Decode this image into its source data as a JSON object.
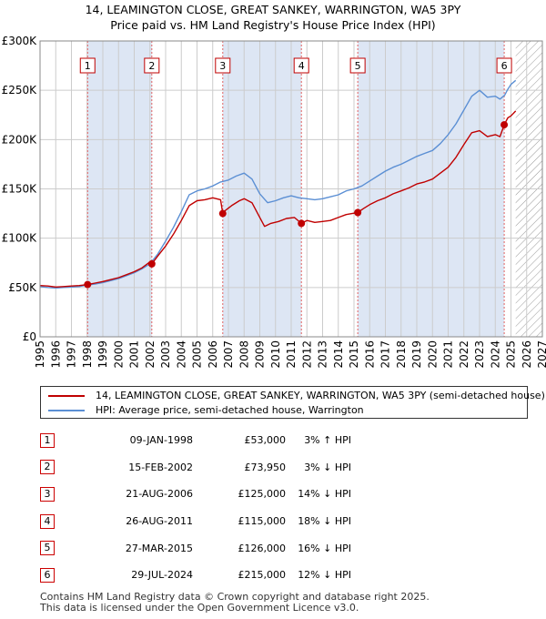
{
  "title": {
    "line1": "14, LEAMINGTON CLOSE, GREAT SANKEY, WARRINGTON, WA5 3PY",
    "line2": "Price paid vs. HM Land Registry's House Price Index (HPI)"
  },
  "colors": {
    "property": "#c00000",
    "hpi": "#5b8fd4",
    "shade": "#dde6f4",
    "grid": "#cccccc",
    "marker_line": "#e06060"
  },
  "chart_data": {
    "type": "line",
    "xlim": [
      1995,
      2027
    ],
    "ylim": [
      0,
      300000
    ],
    "x_ticks": [
      "1995",
      "1996",
      "1997",
      "1998",
      "1999",
      "2000",
      "2001",
      "2002",
      "2003",
      "2004",
      "2005",
      "2006",
      "2007",
      "2008",
      "2009",
      "2010",
      "2011",
      "2012",
      "2013",
      "2014",
      "2015",
      "2016",
      "2017",
      "2018",
      "2019",
      "2020",
      "2021",
      "2022",
      "2023",
      "2024",
      "2025",
      "2026",
      "2027"
    ],
    "y_ticks": [
      {
        "value": 0,
        "label": "£0"
      },
      {
        "value": 50000,
        "label": "£50K"
      },
      {
        "value": 100000,
        "label": "£100K"
      },
      {
        "value": 150000,
        "label": "£150K"
      },
      {
        "value": 200000,
        "label": "£200K"
      },
      {
        "value": 250000,
        "label": "£250K"
      },
      {
        "value": 300000,
        "label": "£300K"
      }
    ],
    "forecast_start": 2025.3,
    "series": [
      {
        "name": "14, LEAMINGTON CLOSE, GREAT SANKEY, WARRINGTON, WA5 3PY (semi-detached house)",
        "color": "#c00000",
        "points": [
          [
            1995.0,
            52000
          ],
          [
            1995.5,
            51500
          ],
          [
            1996.0,
            50500
          ],
          [
            1996.5,
            51000
          ],
          [
            1997.0,
            51500
          ],
          [
            1997.5,
            52000
          ],
          [
            1998.03,
            53000
          ],
          [
            1998.5,
            54500
          ],
          [
            1999.0,
            56000
          ],
          [
            1999.5,
            58000
          ],
          [
            2000.0,
            60000
          ],
          [
            2000.5,
            63000
          ],
          [
            2001.0,
            66000
          ],
          [
            2001.5,
            70000
          ],
          [
            2002.0,
            76000
          ],
          [
            2002.12,
            73950
          ],
          [
            2002.5,
            82000
          ],
          [
            2003.0,
            92000
          ],
          [
            2003.5,
            104000
          ],
          [
            2004.0,
            118000
          ],
          [
            2004.5,
            133000
          ],
          [
            2005.0,
            138000
          ],
          [
            2005.5,
            139000
          ],
          [
            2006.0,
            141000
          ],
          [
            2006.5,
            139000
          ],
          [
            2006.64,
            125000
          ],
          [
            2006.8,
            128000
          ],
          [
            2007.2,
            133000
          ],
          [
            2007.7,
            138000
          ],
          [
            2008.0,
            140000
          ],
          [
            2008.5,
            136000
          ],
          [
            2009.0,
            121000
          ],
          [
            2009.3,
            112000
          ],
          [
            2009.7,
            115000
          ],
          [
            2010.2,
            117000
          ],
          [
            2010.7,
            120000
          ],
          [
            2011.2,
            121000
          ],
          [
            2011.65,
            115000
          ],
          [
            2012.0,
            118000
          ],
          [
            2012.5,
            116000
          ],
          [
            2013.0,
            117000
          ],
          [
            2013.5,
            118000
          ],
          [
            2014.0,
            121000
          ],
          [
            2014.5,
            124000
          ],
          [
            2015.24,
            126000
          ],
          [
            2015.6,
            130000
          ],
          [
            2016.0,
            134000
          ],
          [
            2016.5,
            138000
          ],
          [
            2017.0,
            141000
          ],
          [
            2017.5,
            145000
          ],
          [
            2018.0,
            148000
          ],
          [
            2018.5,
            151000
          ],
          [
            2019.0,
            155000
          ],
          [
            2019.5,
            157000
          ],
          [
            2020.0,
            160000
          ],
          [
            2020.5,
            166000
          ],
          [
            2021.0,
            172000
          ],
          [
            2021.5,
            182000
          ],
          [
            2022.0,
            195000
          ],
          [
            2022.5,
            207000
          ],
          [
            2023.0,
            209000
          ],
          [
            2023.5,
            203000
          ],
          [
            2024.0,
            205000
          ],
          [
            2024.3,
            203000
          ],
          [
            2024.57,
            215000
          ],
          [
            2024.8,
            222000
          ],
          [
            2025.0,
            224000
          ],
          [
            2025.3,
            229000
          ]
        ]
      },
      {
        "name": "HPI: Average price, semi-detached house, Warrington",
        "color": "#5b8fd4",
        "points": [
          [
            1995.0,
            51000
          ],
          [
            1995.5,
            50000
          ],
          [
            1996.0,
            49500
          ],
          [
            1996.5,
            50000
          ],
          [
            1997.0,
            50500
          ],
          [
            1997.5,
            51000
          ],
          [
            1998.0,
            52500
          ],
          [
            1998.5,
            53500
          ],
          [
            1999.0,
            55000
          ],
          [
            1999.5,
            57000
          ],
          [
            2000.0,
            59000
          ],
          [
            2000.5,
            62000
          ],
          [
            2001.0,
            65000
          ],
          [
            2001.5,
            69000
          ],
          [
            2002.0,
            74000
          ],
          [
            2002.5,
            84000
          ],
          [
            2003.0,
            97000
          ],
          [
            2003.5,
            111000
          ],
          [
            2004.0,
            127000
          ],
          [
            2004.5,
            144000
          ],
          [
            2005.0,
            148000
          ],
          [
            2005.5,
            150000
          ],
          [
            2006.0,
            153000
          ],
          [
            2006.5,
            157000
          ],
          [
            2007.0,
            159000
          ],
          [
            2007.5,
            163000
          ],
          [
            2008.0,
            166000
          ],
          [
            2008.5,
            160000
          ],
          [
            2009.0,
            145000
          ],
          [
            2009.5,
            136000
          ],
          [
            2010.0,
            138000
          ],
          [
            2010.5,
            141000
          ],
          [
            2011.0,
            143000
          ],
          [
            2011.5,
            141000
          ],
          [
            2012.0,
            140000
          ],
          [
            2012.5,
            139000
          ],
          [
            2013.0,
            140000
          ],
          [
            2013.5,
            142000
          ],
          [
            2014.0,
            144000
          ],
          [
            2014.5,
            148000
          ],
          [
            2015.0,
            150000
          ],
          [
            2015.5,
            153000
          ],
          [
            2016.0,
            158000
          ],
          [
            2016.5,
            163000
          ],
          [
            2017.0,
            168000
          ],
          [
            2017.5,
            172000
          ],
          [
            2018.0,
            175000
          ],
          [
            2018.5,
            179000
          ],
          [
            2019.0,
            183000
          ],
          [
            2019.5,
            186000
          ],
          [
            2020.0,
            189000
          ],
          [
            2020.5,
            196000
          ],
          [
            2021.0,
            205000
          ],
          [
            2021.5,
            216000
          ],
          [
            2022.0,
            230000
          ],
          [
            2022.5,
            244000
          ],
          [
            2023.0,
            250000
          ],
          [
            2023.5,
            243000
          ],
          [
            2024.0,
            244000
          ],
          [
            2024.3,
            241000
          ],
          [
            2024.6,
            245000
          ],
          [
            2024.8,
            251000
          ],
          [
            2025.0,
            256000
          ],
          [
            2025.3,
            260000
          ]
        ]
      }
    ],
    "sales": [
      {
        "n": "1",
        "x": 1998.03,
        "value": 53000
      },
      {
        "n": "2",
        "x": 2002.12,
        "value": 73950
      },
      {
        "n": "3",
        "x": 2006.64,
        "value": 125000
      },
      {
        "n": "4",
        "x": 2011.65,
        "value": 115000
      },
      {
        "n": "5",
        "x": 2015.24,
        "value": 126000
      },
      {
        "n": "6",
        "x": 2024.57,
        "value": 215000
      }
    ],
    "shaded_spans": [
      [
        1998.03,
        2002.12
      ],
      [
        2006.64,
        2011.65
      ],
      [
        2015.24,
        2024.57
      ]
    ]
  },
  "legend": {
    "property_label": "14, LEAMINGTON CLOSE, GREAT SANKEY, WARRINGTON, WA5 3PY (semi-detached house)",
    "hpi_label": "HPI: Average price, semi-detached house, Warrington"
  },
  "table": [
    {
      "n": "1",
      "date": "09-JAN-1998",
      "price": "£53,000",
      "pct": "3% ↑ HPI"
    },
    {
      "n": "2",
      "date": "15-FEB-2002",
      "price": "£73,950",
      "pct": "3% ↓ HPI"
    },
    {
      "n": "3",
      "date": "21-AUG-2006",
      "price": "£125,000",
      "pct": "14% ↓ HPI"
    },
    {
      "n": "4",
      "date": "26-AUG-2011",
      "price": "£115,000",
      "pct": "18% ↓ HPI"
    },
    {
      "n": "5",
      "date": "27-MAR-2015",
      "price": "£126,000",
      "pct": "16% ↓ HPI"
    },
    {
      "n": "6",
      "date": "29-JUL-2024",
      "price": "£215,000",
      "pct": "12% ↓ HPI"
    }
  ],
  "footer": {
    "line1": "Contains HM Land Registry data © Crown copyright and database right 2025.",
    "line2": "This data is licensed under the Open Government Licence v3.0."
  }
}
